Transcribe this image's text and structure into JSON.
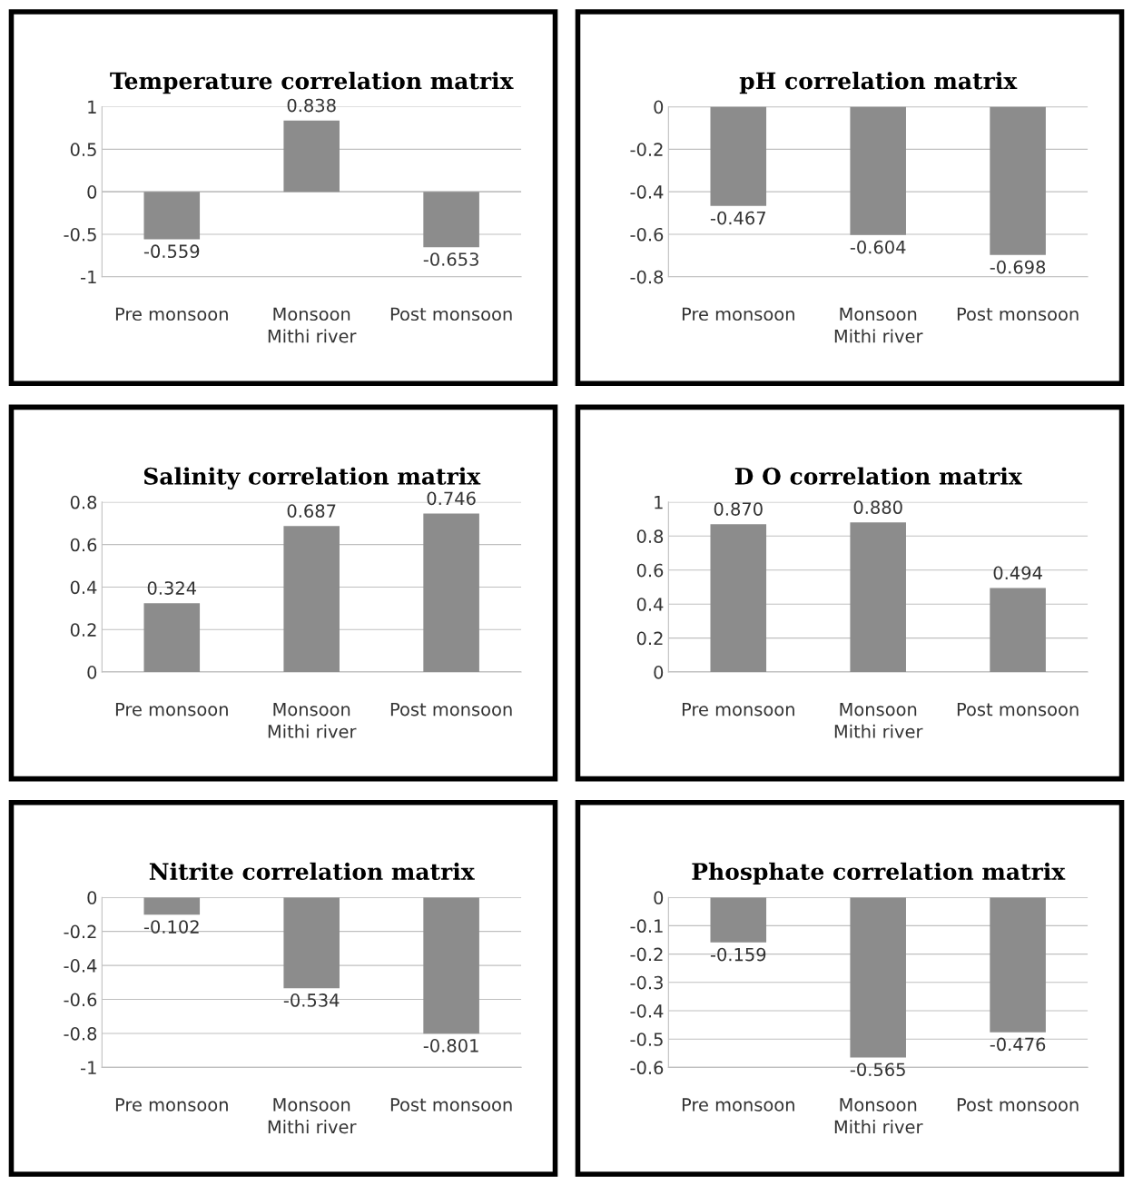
{
  "chart_data": [
    {
      "type": "bar",
      "title": "Temperature correlation matrix",
      "xlabel": "Mithi river",
      "categories": [
        "Pre monsoon",
        "Monsoon",
        "Post monsoon"
      ],
      "values": [
        -0.559,
        0.838,
        -0.653
      ],
      "value_labels": [
        "-0.559",
        "0.838",
        "-0.653"
      ],
      "color": "#8c8c8c",
      "ylim": [
        -1,
        1
      ],
      "yticks": [
        -1,
        -0.5,
        0,
        0.5,
        1
      ],
      "grid": "y"
    },
    {
      "type": "bar",
      "title": "pH correlation matrix",
      "xlabel": "Mithi river",
      "categories": [
        "Pre monsoon",
        "Monsoon",
        "Post monsoon"
      ],
      "values": [
        -0.467,
        -0.604,
        -0.698
      ],
      "value_labels": [
        "-0.467",
        "-0.604",
        "-0.698"
      ],
      "color": "#8c8c8c",
      "ylim": [
        -0.8,
        0
      ],
      "yticks": [
        -0.8,
        -0.6,
        -0.4,
        -0.2,
        0
      ],
      "grid": "y"
    },
    {
      "type": "bar",
      "title": "Salinity correlation matrix",
      "xlabel": "Mithi river",
      "categories": [
        "Pre monsoon",
        "Monsoon",
        "Post monsoon"
      ],
      "values": [
        0.324,
        0.687,
        0.746
      ],
      "value_labels": [
        "0.324",
        "0.687",
        "0.746"
      ],
      "color": "#8c8c8c",
      "ylim": [
        0,
        0.8
      ],
      "yticks": [
        0,
        0.2,
        0.4,
        0.6,
        0.8
      ],
      "grid": "y"
    },
    {
      "type": "bar",
      "title": "D O correlation matrix",
      "xlabel": "Mithi river",
      "categories": [
        "Pre monsoon",
        "Monsoon",
        "Post monsoon"
      ],
      "values": [
        0.87,
        0.88,
        0.494
      ],
      "value_labels": [
        "0.870",
        "0.880",
        "0.494"
      ],
      "color": "#8c8c8c",
      "ylim": [
        0,
        1
      ],
      "yticks": [
        0,
        0.2,
        0.4,
        0.6,
        0.8,
        1
      ],
      "grid": "y"
    },
    {
      "type": "bar",
      "title": "Nitrite correlation matrix",
      "xlabel": "Mithi river",
      "categories": [
        "Pre monsoon",
        "Monsoon",
        "Post monsoon"
      ],
      "values": [
        -0.102,
        -0.534,
        -0.801
      ],
      "value_labels": [
        "-0.102",
        "-0.534",
        "-0.801"
      ],
      "color": "#8c8c8c",
      "ylim": [
        -1,
        0
      ],
      "yticks": [
        -1,
        -0.8,
        -0.6,
        -0.4,
        -0.2,
        0
      ],
      "grid": "y"
    },
    {
      "type": "bar",
      "title": "Phosphate correlation matrix",
      "xlabel": "Mithi river",
      "categories": [
        "Pre monsoon",
        "Monsoon",
        "Post monsoon"
      ],
      "values": [
        -0.159,
        -0.565,
        -0.476
      ],
      "value_labels": [
        "-0.159",
        "-0.565",
        "-0.476"
      ],
      "color": "#8c8c8c",
      "ylim": [
        -0.6,
        0
      ],
      "yticks": [
        -0.6,
        -0.5,
        -0.4,
        -0.3,
        -0.2,
        -0.1,
        0
      ],
      "grid": "y"
    }
  ]
}
